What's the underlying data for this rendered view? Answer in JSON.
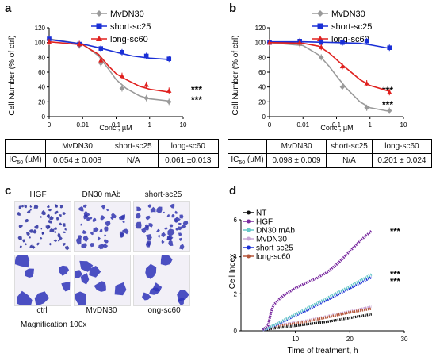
{
  "panels": {
    "a": "a",
    "b": "b",
    "c": "c",
    "d": "d"
  },
  "chart_a": {
    "type": "line",
    "ylabel": "Cell Number (% of ctrl)",
    "xlabel": "Conc., µM",
    "x_scale": "log",
    "xlim": [
      0.001,
      10
    ],
    "ylim": [
      0,
      120
    ],
    "yticks": [
      "0",
      "20",
      "40",
      "60",
      "80",
      "100",
      "120"
    ],
    "xticks": [
      "0",
      "0.01",
      "0.1",
      "1",
      "10"
    ],
    "legend": [
      "MvDN30",
      "short-sc25",
      "long-sc60"
    ],
    "significance": [
      "***",
      "***"
    ],
    "series": [
      {
        "name": "MvDN30",
        "color": "#9a9a9a",
        "marker": "diamond",
        "points": [
          [
            0.001,
            104
          ],
          [
            0.008,
            96
          ],
          [
            0.035,
            72
          ],
          [
            0.15,
            38
          ],
          [
            0.8,
            25
          ],
          [
            3.8,
            20
          ]
        ],
        "curve": [
          [
            0.001,
            105
          ],
          [
            0.01,
            98
          ],
          [
            0.03,
            82
          ],
          [
            0.06,
            64
          ],
          [
            0.1,
            50
          ],
          [
            0.2,
            38
          ],
          [
            0.5,
            28
          ],
          [
            1,
            24
          ],
          [
            4,
            21
          ]
        ]
      },
      {
        "name": "short-sc25",
        "color": "#1a2fd6",
        "marker": "square",
        "points": [
          [
            0.001,
            105
          ],
          [
            0.008,
            98
          ],
          [
            0.035,
            92
          ],
          [
            0.15,
            87
          ],
          [
            0.8,
            82
          ],
          [
            3.8,
            78
          ]
        ],
        "curve": [
          [
            0.001,
            104
          ],
          [
            0.01,
            98
          ],
          [
            0.03,
            93
          ],
          [
            0.1,
            87
          ],
          [
            0.3,
            82
          ],
          [
            1,
            79
          ],
          [
            4,
            77
          ]
        ]
      },
      {
        "name": "long-sc60",
        "color": "#e0201e",
        "marker": "triangle",
        "points": [
          [
            0.001,
            101
          ],
          [
            0.008,
            98
          ],
          [
            0.035,
            76
          ],
          [
            0.15,
            55
          ],
          [
            0.8,
            43
          ],
          [
            3.8,
            35
          ]
        ],
        "curve": [
          [
            0.001,
            101
          ],
          [
            0.01,
            97
          ],
          [
            0.03,
            84
          ],
          [
            0.06,
            68
          ],
          [
            0.1,
            58
          ],
          [
            0.2,
            50
          ],
          [
            0.5,
            41
          ],
          [
            1,
            37
          ],
          [
            4,
            33
          ]
        ]
      }
    ]
  },
  "chart_b": {
    "type": "line",
    "ylabel": "Cell Number (% of ctrl)",
    "xlabel": "Conc., µM",
    "x_scale": "log",
    "xlim": [
      0.001,
      10
    ],
    "ylim": [
      0,
      120
    ],
    "yticks": [
      "0",
      "20",
      "40",
      "60",
      "80",
      "100",
      "120"
    ],
    "xticks": [
      "0",
      "0.01",
      "0.1",
      "1",
      "10"
    ],
    "legend": [
      "MvDN30",
      "short-sc25",
      "long-sc60"
    ],
    "significance": [
      "***",
      "***"
    ],
    "series": [
      {
        "name": "MvDN30",
        "color": "#9a9a9a",
        "marker": "diamond",
        "points": [
          [
            0.001,
            100
          ],
          [
            0.008,
            98
          ],
          [
            0.035,
            80
          ],
          [
            0.15,
            40
          ],
          [
            0.8,
            12
          ],
          [
            3.8,
            8
          ]
        ],
        "curve": [
          [
            0.001,
            100
          ],
          [
            0.01,
            96
          ],
          [
            0.03,
            83
          ],
          [
            0.06,
            68
          ],
          [
            0.1,
            55
          ],
          [
            0.2,
            38
          ],
          [
            0.5,
            20
          ],
          [
            1,
            12
          ],
          [
            4,
            7
          ]
        ]
      },
      {
        "name": "short-sc25",
        "color": "#1a2fd6",
        "marker": "square",
        "points": [
          [
            0.001,
            100
          ],
          [
            0.008,
            102
          ],
          [
            0.035,
            100
          ],
          [
            0.15,
            100
          ],
          [
            0.8,
            102
          ],
          [
            3.8,
            93
          ]
        ],
        "curve": [
          [
            0.001,
            101
          ],
          [
            0.01,
            101
          ],
          [
            0.1,
            100
          ],
          [
            0.5,
            99
          ],
          [
            1,
            97
          ],
          [
            4,
            92
          ]
        ]
      },
      {
        "name": "long-sc60",
        "color": "#e0201e",
        "marker": "triangle",
        "points": [
          [
            0.001,
            100
          ],
          [
            0.008,
            100
          ],
          [
            0.035,
            94
          ],
          [
            0.15,
            68
          ],
          [
            0.8,
            45
          ],
          [
            3.8,
            33
          ]
        ],
        "curve": [
          [
            0.001,
            100
          ],
          [
            0.01,
            99
          ],
          [
            0.03,
            95
          ],
          [
            0.06,
            86
          ],
          [
            0.1,
            77
          ],
          [
            0.2,
            65
          ],
          [
            0.5,
            50
          ],
          [
            1,
            42
          ],
          [
            4,
            34
          ]
        ]
      }
    ]
  },
  "table_a": {
    "headers": [
      "",
      "MvDN30",
      "short-sc25",
      "long-sc60"
    ],
    "row_label_main": "IC",
    "row_label_sub": "50",
    "row_label_unit": " (µM)",
    "values": [
      "0.054 ± 0.008",
      "N/A",
      "0.061 ±0.013"
    ]
  },
  "table_b": {
    "headers": [
      "",
      "MvDN30",
      "short-sc25",
      "long-sc60"
    ],
    "row_label_main": "IC",
    "row_label_sub": "50",
    "row_label_unit": " (µM)",
    "values": [
      "0.098 ± 0.009",
      "N/A",
      "0.201 ± 0.024"
    ]
  },
  "micrographs": {
    "top_labels": [
      "HGF",
      "DN30 mAb",
      "short-sc25"
    ],
    "bottom_labels": [
      "ctrl",
      "MvDN30",
      "long-sc60"
    ],
    "magnification": "Magnification 100x"
  },
  "chart_d": {
    "type": "line",
    "ylabel": "Cell Index",
    "xlabel": "Time of treatment, h",
    "xlim": [
      0,
      30
    ],
    "ylim": [
      0,
      6
    ],
    "yticks": [
      "0",
      "2",
      "4",
      "6"
    ],
    "xticks": [
      "10",
      "20",
      "30"
    ],
    "legend": [
      "NT",
      "HGF",
      "DN30 mAb",
      "MvDN30",
      "short-sc25",
      "long-sc60"
    ],
    "significance": [
      "***",
      "***",
      "***"
    ],
    "series": [
      {
        "name": "NT",
        "color": "#111111",
        "marker": "star",
        "points": [
          [
            4,
            0.05
          ],
          [
            5,
            0.1
          ],
          [
            8,
            0.2
          ],
          [
            12,
            0.35
          ],
          [
            16,
            0.5
          ],
          [
            20,
            0.7
          ],
          [
            24,
            0.9
          ]
        ]
      },
      {
        "name": "HGF",
        "color": "#7a2ca0",
        "marker": "star",
        "points": [
          [
            4,
            0.05
          ],
          [
            5,
            0.3
          ],
          [
            5.5,
            1.0
          ],
          [
            6,
            1.4
          ],
          [
            7,
            1.7
          ],
          [
            8,
            1.95
          ],
          [
            10,
            2.3
          ],
          [
            12,
            2.6
          ],
          [
            14,
            2.85
          ],
          [
            16,
            3.2
          ],
          [
            18,
            3.7
          ],
          [
            20,
            4.3
          ],
          [
            22,
            4.9
          ],
          [
            24,
            5.4
          ]
        ]
      },
      {
        "name": "DN30 mAb",
        "color": "#69c9c9",
        "marker": "star",
        "points": [
          [
            4,
            0.05
          ],
          [
            5,
            0.15
          ],
          [
            8,
            0.6
          ],
          [
            12,
            1.2
          ],
          [
            16,
            1.8
          ],
          [
            20,
            2.4
          ],
          [
            24,
            3.05
          ]
        ]
      },
      {
        "name": "MvDN30",
        "color": "#c8a5d6",
        "marker": "star",
        "points": [
          [
            4,
            0.05
          ],
          [
            5,
            0.15
          ],
          [
            8,
            0.35
          ],
          [
            12,
            0.55
          ],
          [
            16,
            0.8
          ],
          [
            20,
            1.05
          ],
          [
            24,
            1.3
          ]
        ]
      },
      {
        "name": "short-sc25",
        "color": "#1a2fd6",
        "marker": "star",
        "points": [
          [
            4,
            0.05
          ],
          [
            5,
            0.12
          ],
          [
            8,
            0.55
          ],
          [
            12,
            1.1
          ],
          [
            16,
            1.7
          ],
          [
            20,
            2.3
          ],
          [
            24,
            2.9
          ]
        ]
      },
      {
        "name": "long-sc60",
        "color": "#b5563a",
        "marker": "star",
        "points": [
          [
            4,
            0.05
          ],
          [
            5,
            0.1
          ],
          [
            8,
            0.3
          ],
          [
            12,
            0.5
          ],
          [
            16,
            0.75
          ],
          [
            20,
            1.0
          ],
          [
            24,
            1.2
          ]
        ]
      }
    ]
  }
}
